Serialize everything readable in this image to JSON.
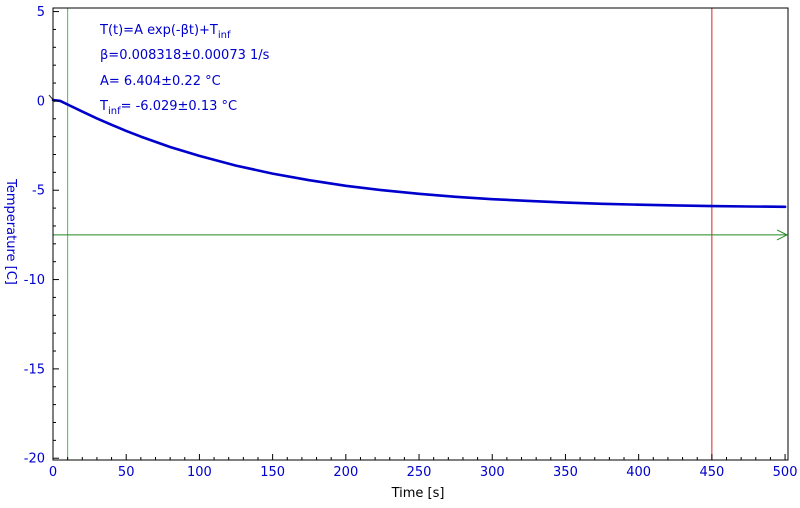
{
  "chart_data": {
    "type": "line",
    "title": "",
    "xlabel": "Time [s]",
    "ylabel": "Temperature [C]",
    "xlim": [
      0,
      502
    ],
    "ylim": [
      -20.1,
      5.2
    ],
    "grid": false,
    "x_ticks": [
      0,
      50,
      100,
      150,
      200,
      250,
      300,
      350,
      400,
      450,
      500
    ],
    "y_ticks": [
      5,
      0,
      -5,
      -10,
      -15,
      -20
    ],
    "series": [
      {
        "color": "#0000cc",
        "x": [
          0,
          5,
          10,
          20,
          30,
          40,
          50,
          60,
          80,
          100,
          125,
          150,
          175,
          200,
          225,
          250,
          275,
          300,
          325,
          350,
          375,
          400,
          425,
          450,
          475,
          500
        ],
        "y": [
          0.05,
          0.0,
          -0.2,
          -0.6,
          -0.98,
          -1.34,
          -1.68,
          -2.0,
          -2.58,
          -3.08,
          -3.62,
          -4.07,
          -4.44,
          -4.75,
          -5.0,
          -5.2,
          -5.37,
          -5.5,
          -5.6,
          -5.69,
          -5.76,
          -5.81,
          -5.85,
          -5.89,
          -5.91,
          -5.93
        ]
      }
    ],
    "vertical_markers": [
      {
        "x": 10,
        "color": "#33cc33"
      },
      {
        "x": 450,
        "color": "#dd2222"
      }
    ],
    "horizontal_marker": {
      "y": -7.5,
      "color": "#228822"
    },
    "fit_annotation": {
      "line1_main": "T(t)=A exp(-βt)+T",
      "line1_sub": "inf",
      "line2": "β=0.008318±0.00073 1/s",
      "line3": "A= 6.404±0.22 °C",
      "line4_main": "T",
      "line4_sub": "inf",
      "line4_rest": "= -6.029±0.13 °C"
    },
    "colors": {
      "data": "#0000cc",
      "axis_text": "#0000cc",
      "frame": "#000000"
    }
  }
}
